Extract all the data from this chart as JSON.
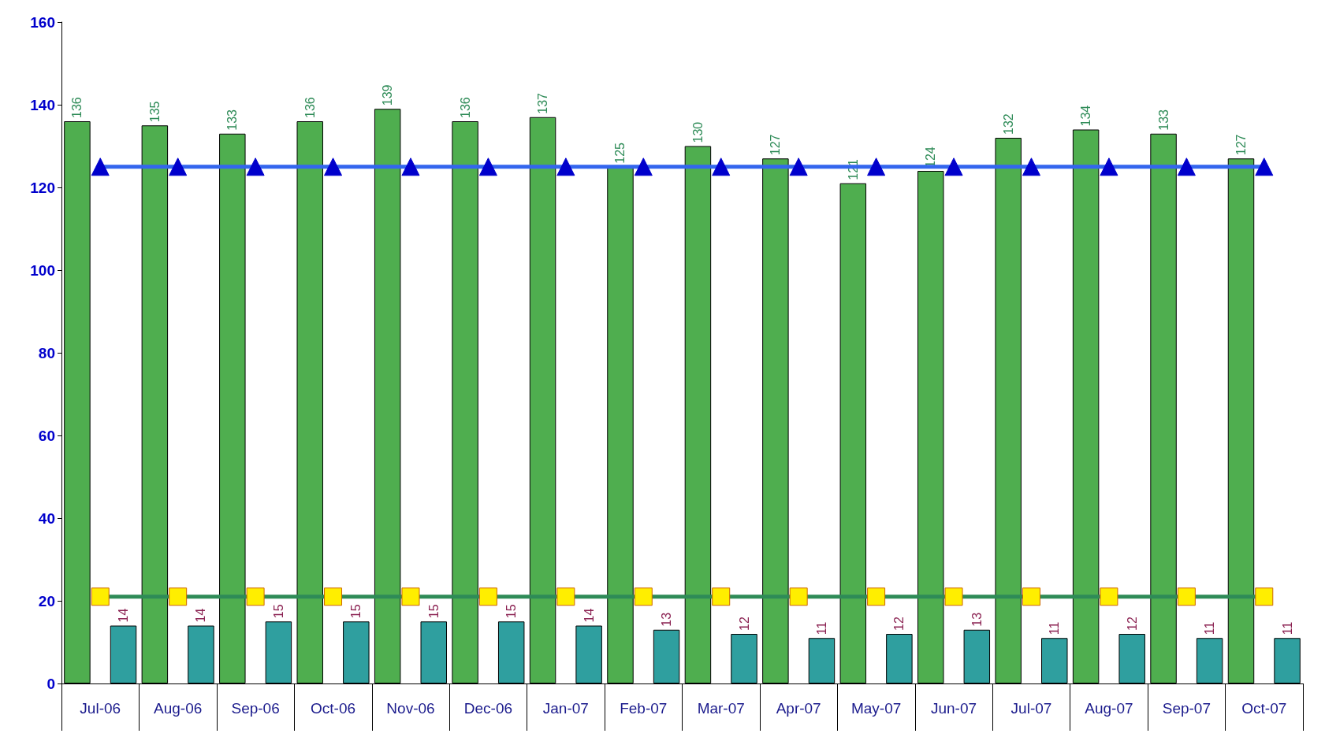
{
  "chart_data": {
    "type": "bar",
    "categories": [
      "Jul-06",
      "Aug-06",
      "Sep-06",
      "Oct-06",
      "Nov-06",
      "Dec-06",
      "Jan-07",
      "Feb-07",
      "Mar-07",
      "Apr-07",
      "May-07",
      "Jun-07",
      "Jul-07",
      "Aug-07",
      "Sep-07",
      "Oct-07"
    ],
    "series": [
      {
        "color": "#4fae4f",
        "values": [
          136,
          135,
          133,
          136,
          139,
          136,
          137,
          125,
          130,
          127,
          121,
          124,
          132,
          134,
          133,
          127
        ],
        "value_labels": [
          "136",
          "135",
          "133",
          "136",
          "139",
          "136",
          "137",
          "125",
          "130",
          "127",
          "121",
          "124",
          "132",
          "134",
          "133",
          "127"
        ]
      },
      {
        "color": "#2f9f9f",
        "values": [
          14,
          14,
          15,
          15,
          15,
          15,
          14,
          13,
          12,
          11,
          12,
          13,
          11,
          12,
          11,
          11
        ],
        "value_labels": [
          "14",
          "14",
          "15",
          "15",
          "15",
          "15",
          "14",
          "13",
          "12",
          "11",
          "12",
          "13",
          "11",
          "12",
          "11",
          "11"
        ]
      },
      {
        "type": "line",
        "color": "#3366ee",
        "marker": "triangle",
        "values": [
          125,
          125,
          125,
          125,
          125,
          125,
          125,
          125,
          125,
          125,
          125,
          125,
          125,
          125,
          125,
          125
        ]
      },
      {
        "type": "line",
        "color": "#2e8b57",
        "marker": "square",
        "values": [
          21,
          21,
          21,
          21,
          21,
          21,
          21,
          21,
          21,
          21,
          21,
          21,
          21,
          21,
          21,
          21
        ]
      }
    ],
    "ylim": [
      0,
      160
    ],
    "yticks": [
      0,
      20,
      40,
      60,
      80,
      100,
      120,
      140,
      160
    ],
    "grid": false
  }
}
